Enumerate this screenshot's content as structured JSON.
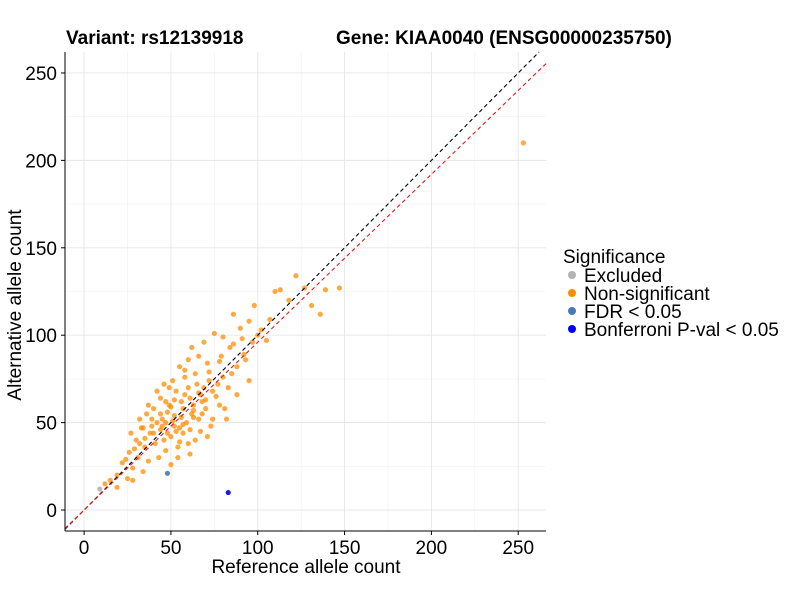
{
  "chart_data": {
    "type": "scatter",
    "title_left": "Variant: rs12139918",
    "title_right": "Gene: KIAA0040 (ENSG00000235750)",
    "xlabel": "Reference allele count",
    "ylabel": "Alternative allele count",
    "xlim": [
      -11,
      266
    ],
    "ylim": [
      -12,
      262
    ],
    "x_ticks": [
      0,
      50,
      100,
      150,
      200,
      250
    ],
    "y_ticks": [
      0,
      50,
      100,
      150,
      200,
      250
    ],
    "grid": true,
    "legend": {
      "title": "Significance",
      "position": "right",
      "entries": [
        {
          "label": "Excluded",
          "color": "#b3b3b3"
        },
        {
          "label": "Non-significant",
          "color": "#ff8c00"
        },
        {
          "label": "FDR < 0.05",
          "color": "#4a7ab5"
        },
        {
          "label": "Bonferroni P-val < 0.05",
          "color": "#0000ff"
        }
      ]
    },
    "reference_lines": [
      {
        "name": "identity",
        "slope": 1.0,
        "intercept": 0,
        "color": "#000000",
        "dash": true
      },
      {
        "name": "fit",
        "slope": 0.96,
        "intercept": 0,
        "color": "#e41a1c",
        "dash": true
      }
    ],
    "series": [
      {
        "name": "Non-significant",
        "color": "#ff8c00",
        "points": [
          [
            253,
            210
          ],
          [
            147,
            127
          ],
          [
            139,
            126
          ],
          [
            122,
            134
          ],
          [
            127,
            127
          ],
          [
            118,
            120
          ],
          [
            113,
            126
          ],
          [
            110,
            125
          ],
          [
            131,
            117
          ],
          [
            136,
            112
          ],
          [
            98,
            117
          ],
          [
            107,
            109
          ],
          [
            95,
            108
          ],
          [
            102,
            103
          ],
          [
            90,
            104
          ],
          [
            86,
            112
          ],
          [
            97,
            96
          ],
          [
            80,
            99
          ],
          [
            75,
            101
          ],
          [
            84,
            93
          ],
          [
            92,
            89
          ],
          [
            69,
            96
          ],
          [
            62,
            93
          ],
          [
            66,
            88
          ],
          [
            71,
            84
          ],
          [
            78,
            85
          ],
          [
            88,
            82
          ],
          [
            60,
            86
          ],
          [
            55,
            82
          ],
          [
            58,
            76
          ],
          [
            64,
            78
          ],
          [
            72,
            74
          ],
          [
            80,
            76
          ],
          [
            51,
            74
          ],
          [
            46,
            72
          ],
          [
            53,
            68
          ],
          [
            60,
            70
          ],
          [
            67,
            66
          ],
          [
            74,
            68
          ],
          [
            83,
            70
          ],
          [
            44,
            64
          ],
          [
            49,
            60
          ],
          [
            56,
            62
          ],
          [
            63,
            60
          ],
          [
            70,
            58
          ],
          [
            78,
            60
          ],
          [
            40,
            58
          ],
          [
            36,
            55
          ],
          [
            45,
            52
          ],
          [
            52,
            54
          ],
          [
            59,
            50
          ],
          [
            66,
            52
          ],
          [
            73,
            48
          ],
          [
            82,
            52
          ],
          [
            33,
            47
          ],
          [
            38,
            44
          ],
          [
            44,
            46
          ],
          [
            50,
            42
          ],
          [
            57,
            44
          ],
          [
            64,
            40
          ],
          [
            71,
            42
          ],
          [
            30,
            40
          ],
          [
            35,
            36
          ],
          [
            41,
            38
          ],
          [
            47,
            34
          ],
          [
            54,
            36
          ],
          [
            61,
            32
          ],
          [
            26,
            33
          ],
          [
            31,
            30
          ],
          [
            37,
            28
          ],
          [
            43,
            30
          ],
          [
            50,
            26
          ],
          [
            22,
            27
          ],
          [
            28,
            24
          ],
          [
            34,
            22
          ],
          [
            19,
            20
          ],
          [
            25,
            18
          ],
          [
            15,
            17
          ],
          [
            12,
            15
          ],
          [
            19,
            13
          ],
          [
            28,
            17
          ],
          [
            52,
            63
          ],
          [
            48,
            56
          ],
          [
            57,
            58
          ],
          [
            62,
            55
          ],
          [
            68,
            62
          ],
          [
            42,
            50
          ],
          [
            39,
            48
          ],
          [
            55,
            47
          ],
          [
            47,
            62
          ],
          [
            58,
            66
          ],
          [
            65,
            72
          ],
          [
            53,
            45
          ],
          [
            46,
            40
          ],
          [
            61,
            64
          ],
          [
            69,
            70
          ],
          [
            76,
            65
          ],
          [
            40,
            44
          ],
          [
            35,
            41
          ],
          [
            29,
            35
          ],
          [
            24,
            29
          ],
          [
            32,
            38
          ],
          [
            44,
            55
          ],
          [
            50,
            59
          ],
          [
            56,
            53
          ],
          [
            63,
            57
          ],
          [
            70,
            63
          ],
          [
            77,
            72
          ],
          [
            85,
            78
          ],
          [
            93,
            86
          ],
          [
            58,
            80
          ],
          [
            49,
            70
          ],
          [
            42,
            68
          ],
          [
            37,
            60
          ],
          [
            32,
            52
          ],
          [
            27,
            44
          ],
          [
            54,
            30
          ],
          [
            60,
            38
          ],
          [
            67,
            45
          ],
          [
            74,
            52
          ],
          [
            81,
            58
          ],
          [
            88,
            66
          ],
          [
            95,
            74
          ],
          [
            68,
            55
          ],
          [
            45,
            48
          ],
          [
            51,
            51
          ],
          [
            57,
            49
          ],
          [
            63,
            53
          ],
          [
            48,
            44
          ],
          [
            55,
            39
          ],
          [
            39,
            52
          ],
          [
            34,
            47
          ],
          [
            66,
            67
          ],
          [
            72,
            79
          ],
          [
            79,
            88
          ],
          [
            86,
            95
          ],
          [
            91,
            98
          ],
          [
            100,
            100
          ],
          [
            105,
            97
          ],
          [
            61,
            46
          ],
          [
            52,
            48
          ],
          [
            47,
            50
          ]
        ]
      },
      {
        "name": "Excluded",
        "color": "#b3b3b3",
        "points": [
          [
            9,
            12
          ]
        ]
      },
      {
        "name": "FDR < 0.05",
        "color": "#4a7ab5",
        "points": [
          [
            48,
            21
          ]
        ]
      },
      {
        "name": "Bonferroni P-val < 0.05",
        "color": "#0000ff",
        "points": [
          [
            83,
            10
          ]
        ]
      }
    ]
  }
}
